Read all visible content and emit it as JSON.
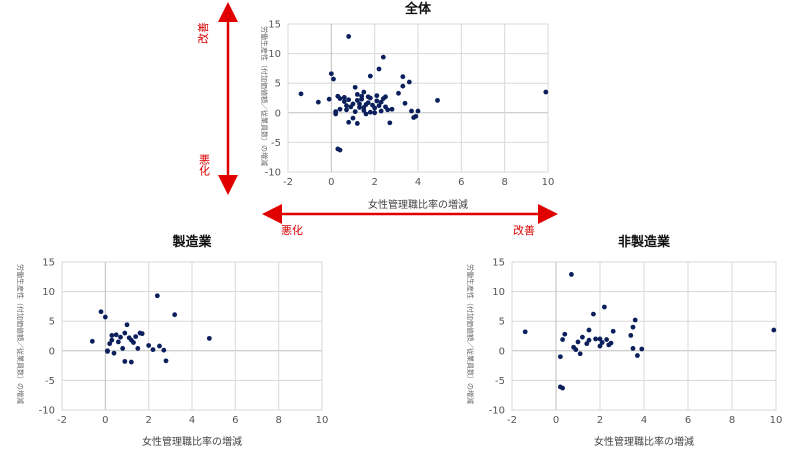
{
  "colors": {
    "point": "#0b1f5c",
    "grid": "#d9d9d9",
    "zero_axis": "#bfbfbf",
    "arrow": "#e00000"
  },
  "legend_labels": {
    "improve_top": "改善",
    "worsen_left": "悪化",
    "worsen_vertical": "悪化",
    "improve_right": "改善"
  },
  "chart_data": [
    {
      "id": "all",
      "type": "scatter",
      "title": "全体",
      "xlabel": "女性管理職比率の増減",
      "ylabel": "労働生産性（付加価値額／従業員数）の増減",
      "xlim": [
        -2,
        10
      ],
      "ylim": [
        -10,
        15
      ],
      "xticks": [
        -2,
        0,
        2,
        4,
        6,
        8,
        10
      ],
      "yticks": [
        -10,
        -5,
        0,
        5,
        10,
        15
      ],
      "grid": true,
      "x": [
        -1.4,
        -0.6,
        0.0,
        0.1,
        0.4,
        0.4,
        0.6,
        0.7,
        0.8,
        1.0,
        1.1,
        1.2,
        1.3,
        1.4,
        1.5,
        1.6,
        1.7,
        1.8,
        1.9,
        2.0,
        2.1,
        2.2,
        2.3,
        2.3,
        2.4,
        2.5,
        2.6,
        2.7,
        3.1,
        3.3,
        3.4,
        3.6,
        3.7,
        3.8,
        3.9,
        4.0,
        4.9,
        9.9,
        0.3,
        0.4,
        0.2,
        0.3,
        0.6,
        0.7,
        0.8,
        0.9,
        1.0,
        1.1,
        1.2,
        1.3,
        1.4,
        1.5,
        1.7,
        2.0,
        2.2,
        2.5,
        2.4,
        2.8,
        3.3,
        1.8,
        0.8,
        1.6,
        2.1,
        1.2,
        1.8,
        -0.1,
        0.2,
        1.5
      ],
      "y": [
        3.2,
        1.8,
        6.6,
        5.7,
        2.4,
        0.6,
        1.9,
        1.2,
        12.9,
        1.5,
        4.3,
        2.1,
        0.9,
        2.8,
        3.5,
        -0.2,
        1.7,
        2.5,
        1.3,
        0.8,
        2.0,
        7.4,
        1.8,
        0.3,
        9.4,
        1.0,
        0.5,
        -1.7,
        3.3,
        6.1,
        1.6,
        5.2,
        0.3,
        -0.8,
        -0.6,
        0.3,
        2.1,
        3.5,
        -6.1,
        -6.3,
        0.2,
        2.8,
        2.6,
        0.5,
        -1.6,
        1.0,
        -0.9,
        0.2,
        -1.8,
        1.5,
        2.3,
        0.9,
        2.7,
        0.0,
        1.2,
        2.7,
        2.4,
        0.6,
        4.5,
        6.2,
        2.2,
        1.4,
        2.9,
        3.1,
        0.1,
        2.3,
        -0.2,
        0.4
      ]
    },
    {
      "id": "manufacturing",
      "type": "scatter",
      "title": "製造業",
      "xlabel": "女性管理職比率の増減",
      "ylabel": "労働生産性（付加価値額／従業員数）の増減",
      "xlim": [
        -2,
        10
      ],
      "ylim": [
        -10,
        15
      ],
      "xticks": [
        -2,
        0,
        2,
        4,
        6,
        8,
        10
      ],
      "yticks": [
        -10,
        -5,
        0,
        5,
        10,
        15
      ],
      "grid": true,
      "x": [
        -0.6,
        -0.2,
        0.0,
        0.1,
        0.2,
        0.3,
        0.5,
        0.6,
        0.7,
        0.8,
        0.9,
        1.0,
        1.1,
        1.2,
        1.3,
        1.4,
        1.5,
        1.6,
        1.7,
        2.0,
        2.2,
        2.4,
        2.5,
        2.7,
        2.8,
        3.2,
        4.8,
        0.1,
        0.3,
        0.9,
        1.2,
        0.4
      ],
      "y": [
        1.6,
        6.6,
        5.7,
        0.0,
        1.2,
        2.6,
        2.7,
        1.5,
        2.3,
        0.4,
        3.0,
        4.4,
        2.2,
        1.8,
        1.4,
        2.4,
        0.4,
        3.0,
        2.9,
        0.9,
        0.2,
        9.3,
        0.8,
        0.1,
        -1.7,
        6.1,
        2.1,
        -0.1,
        1.8,
        -1.8,
        -1.9,
        -0.4
      ]
    },
    {
      "id": "non_manufacturing",
      "type": "scatter",
      "title": "非製造業",
      "xlabel": "女性管理職比率の増減",
      "ylabel": "労働生産性（付加価値額／従業員数）の増減",
      "xlim": [
        -2,
        10
      ],
      "ylim": [
        -10,
        15
      ],
      "xticks": [
        -2,
        0,
        2,
        4,
        6,
        8,
        10
      ],
      "yticks": [
        -10,
        -5,
        0,
        5,
        10,
        15
      ],
      "grid": true,
      "x": [
        -1.4,
        0.2,
        0.3,
        0.3,
        0.4,
        0.7,
        0.8,
        1.0,
        1.2,
        1.4,
        1.5,
        1.7,
        1.8,
        2.0,
        2.1,
        2.2,
        2.3,
        2.4,
        2.5,
        2.6,
        3.4,
        3.5,
        3.6,
        3.7,
        3.9,
        9.9,
        0.2,
        1.1,
        2.0,
        0.9,
        1.5,
        3.5
      ],
      "y": [
        3.2,
        -6.1,
        -6.3,
        1.9,
        2.8,
        12.9,
        0.6,
        1.5,
        2.3,
        1.2,
        3.5,
        6.2,
        2.0,
        0.8,
        1.4,
        7.4,
        1.9,
        1.0,
        1.3,
        3.3,
        2.6,
        4.0,
        5.2,
        -0.8,
        0.3,
        3.5,
        -1.0,
        -0.5,
        2.0,
        0.2,
        1.8,
        0.4
      ]
    }
  ]
}
